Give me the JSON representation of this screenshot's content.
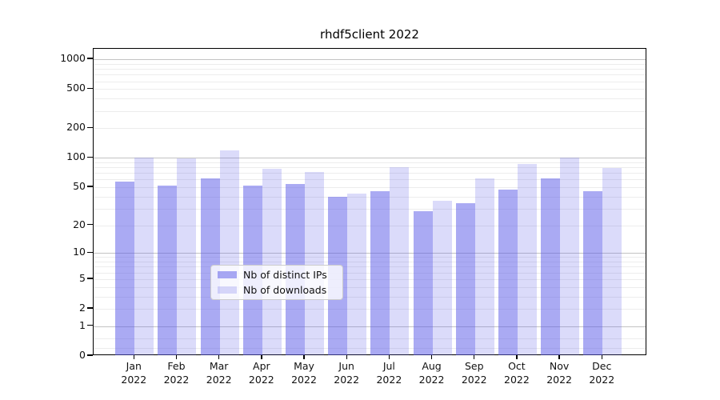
{
  "chart_data": {
    "type": "bar",
    "title": "rhdf5client 2022",
    "categories": [
      "Jan",
      "Feb",
      "Mar",
      "Apr",
      "May",
      "Jun",
      "Jul",
      "Aug",
      "Sep",
      "Oct",
      "Nov",
      "Dec"
    ],
    "category_year": "2022",
    "series": [
      {
        "name": "Nb of distinct IPs",
        "color": "rgba(92,92,232,0.52)",
        "values": [
          57,
          52,
          62,
          52,
          54,
          40,
          45,
          28,
          34,
          47,
          61,
          45
        ]
      },
      {
        "name": "Nb of downloads",
        "color": "rgba(92,92,232,0.22)",
        "values": [
          100,
          98,
          118,
          77,
          71,
          43,
          80,
          36,
          61,
          86,
          101,
          78
        ]
      }
    ],
    "y_axis": {
      "scale": "log1p",
      "ticks": [
        1000,
        500,
        200,
        100,
        50,
        20,
        10,
        5,
        2,
        1,
        0
      ],
      "range": [
        0,
        1000
      ]
    },
    "legend": {
      "position": "inside-bottom-center",
      "entries": [
        "Nb of distinct IPs",
        "Nb of downloads"
      ]
    },
    "grid": true,
    "colors": {
      "major_grid": "#c3c3c3",
      "minor_grid": "#ececec",
      "axis": "#000000",
      "text": "#111111"
    }
  }
}
